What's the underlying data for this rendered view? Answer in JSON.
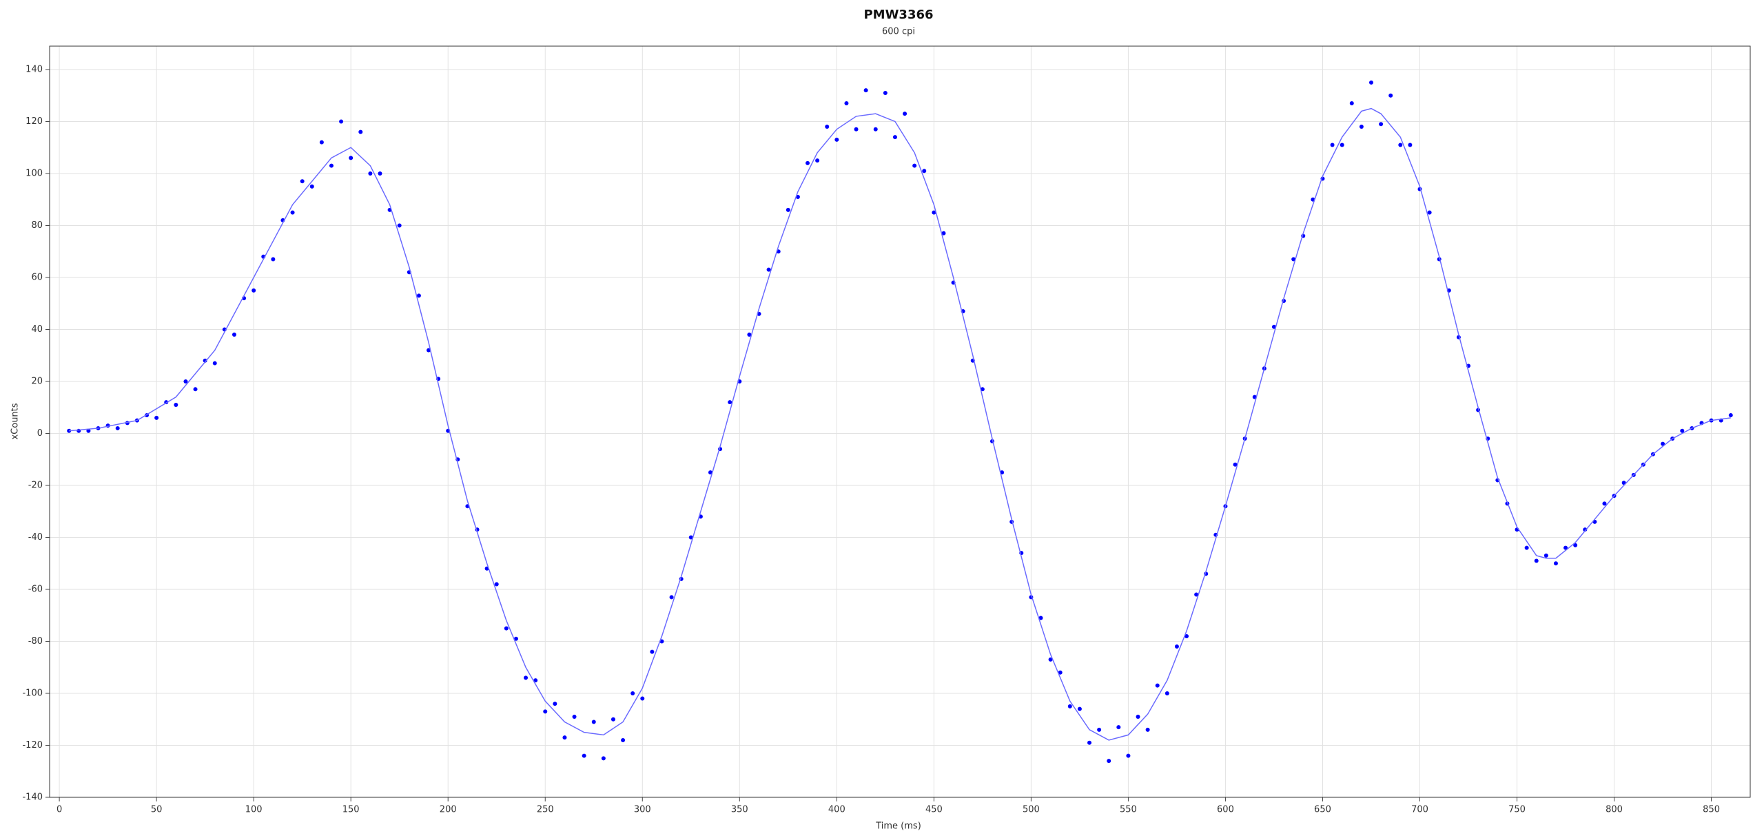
{
  "chart_data": {
    "type": "scatter",
    "title": "PMW3366",
    "subtitle": "600 cpi",
    "x_label": "Time (ms)",
    "y_label": "xCounts",
    "xlim": [
      -5,
      870
    ],
    "ylim": [
      -140,
      149
    ],
    "xticks": [
      0,
      50,
      100,
      150,
      200,
      250,
      300,
      350,
      400,
      450,
      500,
      550,
      600,
      650,
      700,
      750,
      800,
      850
    ],
    "yticks": [
      -140,
      -120,
      -100,
      -80,
      -60,
      -40,
      -20,
      0,
      20,
      40,
      60,
      80,
      100,
      120,
      140
    ],
    "grid": true,
    "series": [
      {
        "type": "scatter",
        "color": "#0000ff",
        "x": [
          5,
          10,
          15,
          20,
          25,
          30,
          35,
          40,
          45,
          50,
          55,
          60,
          65,
          70,
          75,
          80,
          85,
          90,
          95,
          100,
          105,
          110,
          115,
          120,
          125,
          130,
          135,
          140,
          145,
          150,
          155,
          160,
          165,
          170,
          175,
          180,
          185,
          190,
          195,
          200,
          205,
          210,
          215,
          220,
          225,
          230,
          235,
          240,
          245,
          250,
          255,
          260,
          265,
          270,
          275,
          280,
          285,
          290,
          295,
          300,
          305,
          310,
          315,
          320,
          325,
          330,
          335,
          340,
          345,
          350,
          355,
          360,
          365,
          370,
          375,
          380,
          385,
          390,
          395,
          400,
          405,
          410,
          415,
          420,
          425,
          430,
          435,
          440,
          445,
          450,
          455,
          460,
          465,
          470,
          475,
          480,
          485,
          490,
          495,
          500,
          505,
          510,
          515,
          520,
          525,
          530,
          535,
          540,
          545,
          550,
          555,
          560,
          565,
          570,
          575,
          580,
          585,
          590,
          595,
          600,
          605,
          610,
          615,
          620,
          625,
          630,
          635,
          640,
          645,
          650,
          655,
          660,
          665,
          670,
          675,
          680,
          685,
          690,
          695,
          700,
          705,
          710,
          715,
          720,
          725,
          730,
          735,
          740,
          745,
          750,
          755,
          760,
          765,
          770,
          775,
          780,
          785,
          790,
          795,
          800,
          805,
          810,
          815,
          820,
          825,
          830,
          835,
          840,
          845,
          850,
          855,
          860
        ],
        "values": [
          1,
          1,
          1,
          2,
          3,
          2,
          4,
          5,
          7,
          6,
          12,
          11,
          20,
          17,
          28,
          27,
          40,
          38,
          52,
          55,
          68,
          67,
          82,
          85,
          97,
          95,
          112,
          103,
          120,
          106,
          116,
          100,
          100,
          86,
          80,
          62,
          53,
          32,
          21,
          1,
          -10,
          -28,
          -37,
          -52,
          -58,
          -75,
          -79,
          -94,
          -95,
          -107,
          -104,
          -117,
          -109,
          -124,
          -111,
          -125,
          -110,
          -118,
          -100,
          -102,
          -84,
          -80,
          -63,
          -56,
          -40,
          -32,
          -15,
          -6,
          12,
          20,
          38,
          46,
          63,
          70,
          86,
          91,
          104,
          105,
          118,
          113,
          127,
          117,
          132,
          117,
          131,
          114,
          123,
          103,
          101,
          85,
          77,
          58,
          47,
          28,
          17,
          -3,
          -15,
          -34,
          -46,
          -63,
          -71,
          -87,
          -92,
          -105,
          -106,
          -119,
          -114,
          -126,
          -113,
          -124,
          -109,
          -114,
          -97,
          -100,
          -82,
          -78,
          -62,
          -54,
          -39,
          -28,
          -12,
          -2,
          14,
          25,
          41,
          51,
          67,
          76,
          90,
          98,
          111,
          111,
          127,
          118,
          135,
          119,
          130,
          111,
          111,
          94,
          85,
          67,
          55,
          37,
          26,
          9,
          -2,
          -18,
          -27,
          -37,
          -44,
          -49,
          -47,
          -50,
          -44,
          -43,
          -37,
          -34,
          -27,
          -24,
          -19,
          -16,
          -12,
          -8,
          -4,
          -2,
          1,
          2,
          4,
          5,
          5,
          7
        ]
      },
      {
        "type": "line",
        "color": "#6b6bff",
        "x": [
          5,
          20,
          40,
          60,
          80,
          100,
          120,
          140,
          150,
          160,
          170,
          180,
          190,
          200,
          210,
          220,
          230,
          240,
          250,
          260,
          270,
          280,
          290,
          300,
          310,
          320,
          330,
          340,
          350,
          360,
          370,
          380,
          390,
          400,
          410,
          420,
          430,
          440,
          450,
          460,
          470,
          480,
          490,
          500,
          510,
          520,
          530,
          540,
          550,
          560,
          570,
          580,
          590,
          600,
          610,
          620,
          630,
          640,
          650,
          660,
          670,
          675,
          680,
          690,
          700,
          710,
          720,
          730,
          740,
          750,
          760,
          765,
          770,
          780,
          790,
          800,
          810,
          820,
          830,
          840,
          850,
          860
        ],
        "values": [
          1,
          2,
          5,
          14,
          32,
          60,
          88,
          106,
          110,
          103,
          88,
          64,
          35,
          3,
          -26,
          -50,
          -72,
          -90,
          -103,
          -111,
          -115,
          -116,
          -111,
          -98,
          -78,
          -55,
          -30,
          -5,
          22,
          48,
          72,
          93,
          108,
          117,
          122,
          123,
          120,
          108,
          88,
          60,
          30,
          -2,
          -33,
          -62,
          -85,
          -103,
          -114,
          -118,
          -116,
          -108,
          -95,
          -76,
          -53,
          -28,
          -2,
          25,
          52,
          77,
          99,
          114,
          124,
          125,
          123,
          114,
          95,
          68,
          38,
          10,
          -17,
          -36,
          -47,
          -48,
          -48,
          -42,
          -33,
          -24,
          -16,
          -8,
          -2,
          2,
          5,
          6
        ]
      }
    ]
  }
}
